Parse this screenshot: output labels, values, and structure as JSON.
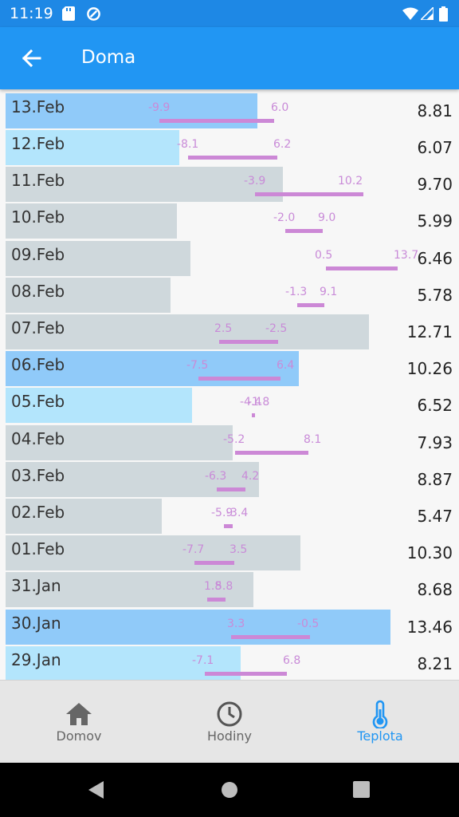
{
  "status": {
    "time": "11:19"
  },
  "appbar": {
    "title": "Doma"
  },
  "colors": {
    "primary": "#2196f3",
    "bar_blue": "#90caf9",
    "bar_light": "#b3e5fc",
    "bar_grey": "#cfd8dc",
    "temp": "#cc88d6"
  },
  "rows": [
    {
      "date": "13.Feb",
      "value": "8.81",
      "tmin": "-9.9",
      "tmax": "6.0"
    },
    {
      "date": "12.Feb",
      "value": "6.07",
      "tmin": "-8.1",
      "tmax": "6.2"
    },
    {
      "date": "11.Feb",
      "value": "9.70",
      "tmin": "-3.9",
      "tmax": "10.2"
    },
    {
      "date": "10.Feb",
      "value": "5.99",
      "tmin": "-2.0",
      "tmax": "9.0"
    },
    {
      "date": "09.Feb",
      "value": "6.46",
      "tmin": "0.5",
      "tmax": "13.7"
    },
    {
      "date": "08.Feb",
      "value": "5.78",
      "tmin": "-1.3",
      "tmax": "9.1"
    },
    {
      "date": "07.Feb",
      "value": "12.71",
      "tmin": "2.5",
      "tmax": "-2.5"
    },
    {
      "date": "06.Feb",
      "value": "10.26",
      "tmin": "-7.5",
      "tmax": "6.4"
    },
    {
      "date": "05.Feb",
      "value": "6.52",
      "tmin": "-4.4",
      "tmax": "-1.8"
    },
    {
      "date": "04.Feb",
      "value": "7.93",
      "tmin": "-5.2",
      "tmax": "8.1"
    },
    {
      "date": "03.Feb",
      "value": "8.87",
      "tmin": "-6.3",
      "tmax": "4.2"
    },
    {
      "date": "02.Feb",
      "value": "5.47",
      "tmin": "-5.9",
      "tmax": "-3.4"
    },
    {
      "date": "01.Feb",
      "value": "10.30",
      "tmin": "-7.7",
      "tmax": "3.5"
    },
    {
      "date": "31.Jan",
      "value": "8.68",
      "tmin": "1.8",
      "tmax": "5.8"
    },
    {
      "date": "30.Jan",
      "value": "13.46",
      "tmin": "3.3",
      "tmax": "-0.5"
    },
    {
      "date": "29.Jan",
      "value": "8.21",
      "tmin": "-7.1",
      "tmax": "6.8"
    }
  ],
  "nav": {
    "home": "Domov",
    "clock": "Hodiny",
    "temp": "Teplota"
  }
}
